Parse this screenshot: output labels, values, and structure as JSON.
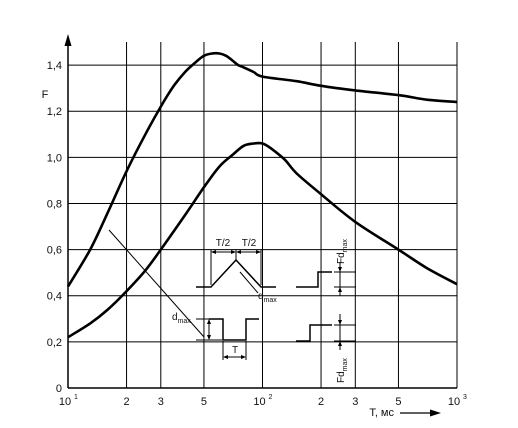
{
  "chart_data": {
    "type": "line",
    "x_scale": "log",
    "xlim": [
      10,
      1000
    ],
    "ylim": [
      0,
      1.5
    ],
    "grid": true,
    "xlabel": "T, мс",
    "ylabel": "F",
    "x_ticks": [
      10,
      20,
      30,
      50,
      100,
      200,
      300,
      500,
      1000
    ],
    "x_tick_labels": [
      {
        "base": "10",
        "exp": "1"
      },
      {
        "base": "2",
        "exp": ""
      },
      {
        "base": "3",
        "exp": ""
      },
      {
        "base": "5",
        "exp": ""
      },
      {
        "base": "10",
        "exp": "2"
      },
      {
        "base": "2",
        "exp": ""
      },
      {
        "base": "3",
        "exp": ""
      },
      {
        "base": "5",
        "exp": ""
      },
      {
        "base": "10",
        "exp": "3"
      }
    ],
    "y_ticks": [
      0,
      0.2,
      0.4,
      0.6,
      0.8,
      1.0,
      1.2,
      1.4
    ],
    "y_tick_labels": [
      "0",
      "0,2",
      "0,4",
      "0,6",
      "0,8",
      "1,0",
      "1,2",
      "1,4"
    ],
    "series": [
      {
        "x": [
          10,
          13,
          16,
          20,
          25,
          30,
          35,
          40,
          45,
          50,
          55,
          60,
          65,
          70,
          75,
          80,
          90,
          100,
          150,
          200,
          300,
          500,
          700,
          1000
        ],
        "y": [
          0.44,
          0.6,
          0.76,
          0.94,
          1.1,
          1.22,
          1.31,
          1.37,
          1.41,
          1.44,
          1.45,
          1.45,
          1.44,
          1.42,
          1.4,
          1.39,
          1.37,
          1.35,
          1.33,
          1.31,
          1.29,
          1.27,
          1.25,
          1.24
        ]
      },
      {
        "x": [
          10,
          13,
          16,
          20,
          25,
          30,
          40,
          50,
          60,
          70,
          80,
          90,
          100,
          110,
          130,
          150,
          200,
          300,
          500,
          700,
          1000
        ],
        "y": [
          0.22,
          0.28,
          0.34,
          0.42,
          0.51,
          0.6,
          0.75,
          0.87,
          0.96,
          1.01,
          1.05,
          1.06,
          1.06,
          1.04,
          0.99,
          0.93,
          0.84,
          0.72,
          0.6,
          0.52,
          0.45
        ]
      }
    ]
  },
  "annotations": {
    "half_period": "T/2",
    "period": "T",
    "dmax": {
      "base": "d",
      "sub": "max"
    },
    "fdmax": {
      "base": "Fd",
      "sub": "max"
    }
  }
}
